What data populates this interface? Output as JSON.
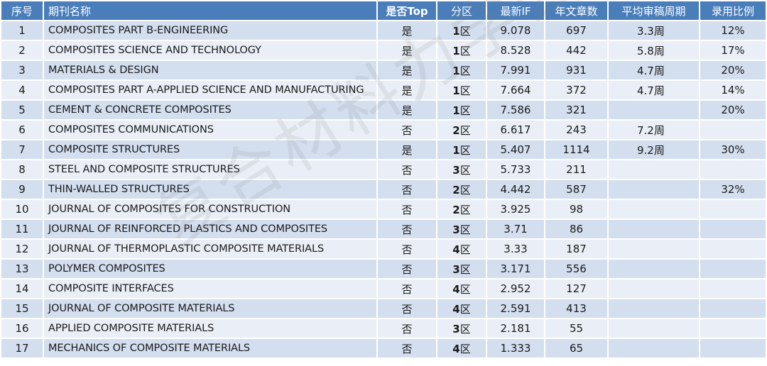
{
  "headers": {
    "index": "序号",
    "name": "期刊名称",
    "top": "是否Top",
    "zone": "分区",
    "impact": "最新IF",
    "articles": "年文章数",
    "review": "平均审稿周期",
    "acceptance": "录用比例"
  },
  "rows": [
    {
      "index": "1",
      "name": "COMPOSITES PART B-ENGINEERING",
      "top": "是",
      "zone_num": "1",
      "zone_suffix": "区",
      "impact": "9.078",
      "articles": "697",
      "review": "3.3周",
      "acceptance": "12%"
    },
    {
      "index": "2",
      "name": "COMPOSITES SCIENCE AND TECHNOLOGY",
      "top": "是",
      "zone_num": "1",
      "zone_suffix": "区",
      "impact": "8.528",
      "articles": "442",
      "review": "5.8周",
      "acceptance": "17%"
    },
    {
      "index": "3",
      "name": "MATERIALS & DESIGN",
      "top": "是",
      "zone_num": "1",
      "zone_suffix": "区",
      "impact": "7.991",
      "articles": "931",
      "review": "4.7周",
      "acceptance": "20%"
    },
    {
      "index": "4",
      "name": "COMPOSITES PART A-APPLIED SCIENCE AND MANUFACTURING",
      "top": "是",
      "zone_num": "1",
      "zone_suffix": "区",
      "impact": "7.664",
      "articles": "372",
      "review": "4.7周",
      "acceptance": "14%"
    },
    {
      "index": "5",
      "name": "CEMENT & CONCRETE COMPOSITES",
      "top": "是",
      "zone_num": "1",
      "zone_suffix": "区",
      "impact": "7.586",
      "articles": "321",
      "review": "",
      "acceptance": "20%"
    },
    {
      "index": "6",
      "name": "COMPOSITES COMMUNICATIONS",
      "top": "否",
      "zone_num": "2",
      "zone_suffix": "区",
      "impact": "6.617",
      "articles": "243",
      "review": "7.2周",
      "acceptance": ""
    },
    {
      "index": "7",
      "name": "COMPOSITE STRUCTURES",
      "top": "是",
      "zone_num": "1",
      "zone_suffix": "区",
      "impact": "5.407",
      "articles": "1114",
      "review": "9.2周",
      "acceptance": "30%"
    },
    {
      "index": "8",
      "name": "STEEL AND COMPOSITE STRUCTURES",
      "top": "否",
      "zone_num": "3",
      "zone_suffix": "区",
      "impact": "5.733",
      "articles": "211",
      "review": "",
      "acceptance": ""
    },
    {
      "index": "9",
      "name": "THIN-WALLED STRUCTURES",
      "top": "否",
      "zone_num": "2",
      "zone_suffix": "区",
      "impact": "4.442",
      "articles": "587",
      "review": "",
      "acceptance": "32%"
    },
    {
      "index": "10",
      "name": "JOURNAL OF COMPOSITES FOR CONSTRUCTION",
      "top": "否",
      "zone_num": "2",
      "zone_suffix": "区",
      "impact": "3.925",
      "articles": "98",
      "review": "",
      "acceptance": ""
    },
    {
      "index": "11",
      "name": "JOURNAL OF REINFORCED PLASTICS AND COMPOSITES",
      "top": "否",
      "zone_num": "3",
      "zone_suffix": "区",
      "impact": "3.71",
      "articles": "86",
      "review": "",
      "acceptance": ""
    },
    {
      "index": "12",
      "name": "JOURNAL OF THERMOPLASTIC COMPOSITE MATERIALS",
      "top": "否",
      "zone_num": "4",
      "zone_suffix": "区",
      "impact": "3.33",
      "articles": "187",
      "review": "",
      "acceptance": ""
    },
    {
      "index": "13",
      "name": "POLYMER COMPOSITES",
      "top": "否",
      "zone_num": "3",
      "zone_suffix": "区",
      "impact": "3.171",
      "articles": "556",
      "review": "",
      "acceptance": ""
    },
    {
      "index": "14",
      "name": "COMPOSITE INTERFACES",
      "top": "否",
      "zone_num": "4",
      "zone_suffix": "区",
      "impact": "2.952",
      "articles": "127",
      "review": "",
      "acceptance": ""
    },
    {
      "index": "15",
      "name": "JOURNAL OF COMPOSITE MATERIALS",
      "top": "否",
      "zone_num": "4",
      "zone_suffix": "区",
      "impact": "2.591",
      "articles": "413",
      "review": "",
      "acceptance": ""
    },
    {
      "index": "16",
      "name": "APPLIED COMPOSITE MATERIALS",
      "top": "否",
      "zone_num": "3",
      "zone_suffix": "区",
      "impact": "2.181",
      "articles": "55",
      "review": "",
      "acceptance": ""
    },
    {
      "index": "17",
      "name": "MECHANICS OF COMPOSITE MATERIALS",
      "top": "否",
      "zone_num": "4",
      "zone_suffix": "区",
      "impact": "1.333",
      "articles": "65",
      "review": "",
      "acceptance": ""
    }
  ],
  "watermark": "复合材料力学公众号",
  "colors": {
    "header_bg": "#4a7ebb",
    "row_odd": "#d3deef",
    "row_even": "#eaeff7"
  }
}
